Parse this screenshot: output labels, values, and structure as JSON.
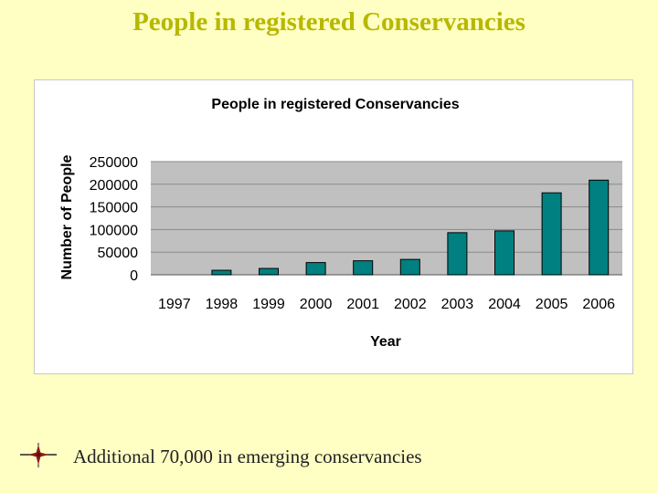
{
  "slide": {
    "title": "People in registered Conservancies",
    "bullet_text": "Additional 70,000 in emerging conservancies",
    "bullet_icon": "compass-star-icon"
  },
  "colors": {
    "background": "#ffffc4",
    "title": "#b8b800",
    "bar": "#008080",
    "plot_area": "#c0c0c0"
  },
  "chart_data": {
    "type": "bar",
    "title": "People in registered Conservancies",
    "xlabel": "Year",
    "ylabel": "Number of People",
    "categories": [
      "1997",
      "1998",
      "1999",
      "2000",
      "2001",
      "2002",
      "2003",
      "2004",
      "2005",
      "2006"
    ],
    "values": [
      0,
      10000,
      14000,
      27000,
      31000,
      34000,
      93000,
      97000,
      181000,
      209000
    ],
    "ylim": [
      0,
      250000
    ],
    "yticks": [
      "0",
      "50000",
      "100000",
      "150000",
      "200000",
      "250000"
    ],
    "grid": true,
    "legend": "none"
  }
}
